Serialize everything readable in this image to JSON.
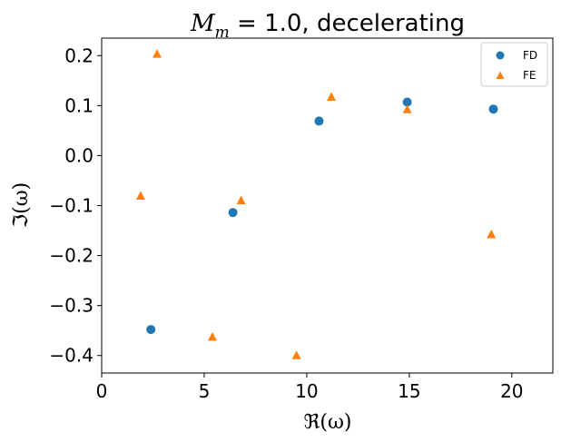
{
  "chart_data": {
    "type": "scatter",
    "title": "M_m = 1.0, decelerating",
    "title_parts": {
      "var": "M",
      "sub": "m",
      "rest": " = 1.0, decelerating"
    },
    "xlabel": "ℜ(ω)",
    "ylabel": "ℑ(ω)",
    "xlim": [
      0,
      22
    ],
    "ylim": [
      -0.435,
      0.235
    ],
    "xticks": [
      0,
      5,
      10,
      15,
      20
    ],
    "yticks": [
      -0.4,
      -0.3,
      -0.2,
      -0.1,
      0.0,
      0.1,
      0.2
    ],
    "xtick_labels": [
      "0",
      "5",
      "10",
      "15",
      "20"
    ],
    "ytick_labels": [
      "−0.4",
      "−0.3",
      "−0.2",
      "−0.1",
      "0.0",
      "0.1",
      "0.2"
    ],
    "grid": false,
    "legend_position": "top-right",
    "series": [
      {
        "name": "FD",
        "marker": "circle",
        "color": "#1f77b4",
        "points": [
          {
            "x": 2.4,
            "y": -0.348
          },
          {
            "x": 6.4,
            "y": -0.114
          },
          {
            "x": 10.6,
            "y": 0.069
          },
          {
            "x": 14.9,
            "y": 0.107
          },
          {
            "x": 19.1,
            "y": 0.093
          }
        ]
      },
      {
        "name": "FE",
        "marker": "triangle",
        "color": "#ff7f0e",
        "points": [
          {
            "x": 1.9,
            "y": -0.081
          },
          {
            "x": 2.7,
            "y": 0.203
          },
          {
            "x": 5.4,
            "y": -0.363
          },
          {
            "x": 6.8,
            "y": -0.09
          },
          {
            "x": 9.5,
            "y": -0.4
          },
          {
            "x": 11.2,
            "y": 0.117
          },
          {
            "x": 14.9,
            "y": 0.092
          },
          {
            "x": 19.0,
            "y": -0.158
          }
        ]
      }
    ]
  }
}
